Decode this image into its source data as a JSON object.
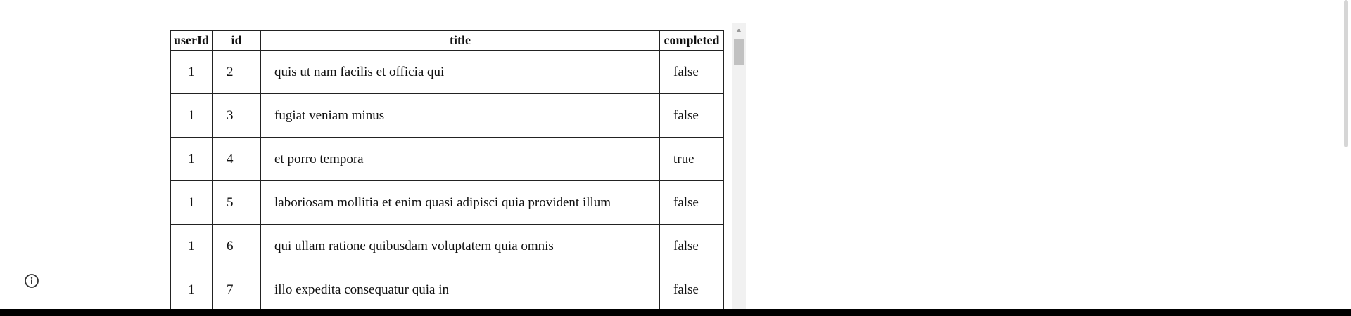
{
  "table": {
    "headers": {
      "userId": "userId",
      "id": "id",
      "title": "title",
      "completed": "completed"
    },
    "rows": [
      {
        "userId": "1",
        "id": "2",
        "title": "quis ut nam facilis et officia qui",
        "completed": "false"
      },
      {
        "userId": "1",
        "id": "3",
        "title": "fugiat veniam minus",
        "completed": "false"
      },
      {
        "userId": "1",
        "id": "4",
        "title": "et porro tempora",
        "completed": "true"
      },
      {
        "userId": "1",
        "id": "5",
        "title": "laboriosam mollitia et enim quasi adipisci quia provident illum",
        "completed": "false"
      },
      {
        "userId": "1",
        "id": "6",
        "title": "qui ullam ratione quibusdam voluptatem quia omnis",
        "completed": "false"
      },
      {
        "userId": "1",
        "id": "7",
        "title": "illo expedita consequatur quia in",
        "completed": "false"
      }
    ]
  },
  "icons": {
    "info": "info-icon"
  }
}
